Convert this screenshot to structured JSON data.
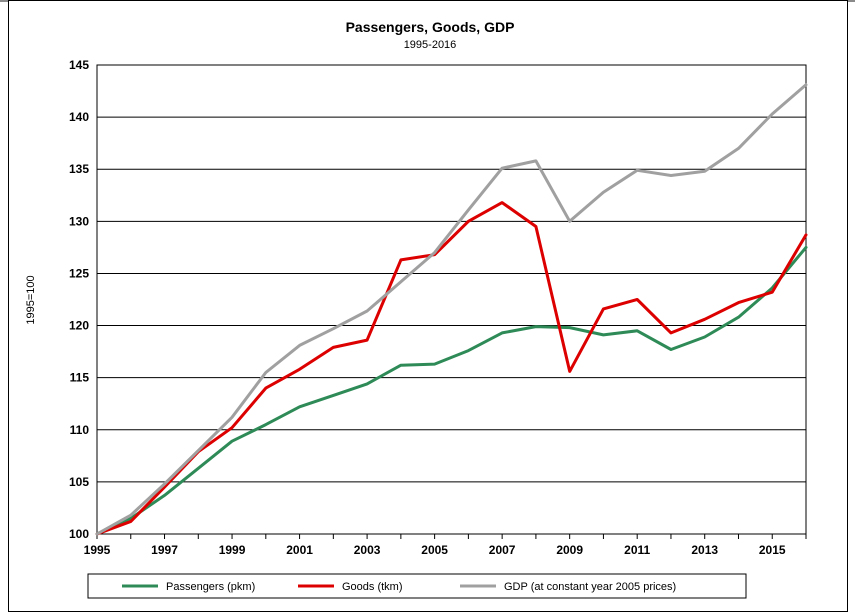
{
  "chart_data": {
    "type": "line",
    "title": "Passengers, Goods, GDP",
    "subtitle": "1995-2016",
    "ylabel": "1995=100",
    "xlabel": "",
    "ylim": [
      100,
      145
    ],
    "yticks": [
      100,
      105,
      110,
      115,
      120,
      125,
      130,
      135,
      140,
      145
    ],
    "xlim": [
      1995,
      2016
    ],
    "xticks": [
      "1995",
      "1997",
      "1999",
      "2001",
      "2003",
      "2005",
      "2007",
      "2009",
      "2011",
      "2013",
      "2015"
    ],
    "grid": "horizontal",
    "legend_position": "bottom",
    "x": [
      1995,
      1996,
      1997,
      1998,
      1999,
      2000,
      2001,
      2002,
      2003,
      2004,
      2005,
      2006,
      2007,
      2008,
      2009,
      2010,
      2011,
      2012,
      2013,
      2014,
      2015,
      2016
    ],
    "series": [
      {
        "name": "Passengers (pkm)",
        "color": "#2e8b57",
        "values": [
          100,
          101.5,
          103.7,
          106.3,
          108.9,
          110.5,
          112.2,
          113.3,
          114.4,
          116.2,
          116.3,
          117.6,
          119.3,
          119.9,
          119.8,
          119.1,
          119.5,
          117.7,
          118.9,
          120.8,
          123.6,
          127.5
        ]
      },
      {
        "name": "Goods (tkm)",
        "color": "#dd0000",
        "values": [
          100,
          101.2,
          104.5,
          107.9,
          110.2,
          114.0,
          115.8,
          117.9,
          118.6,
          126.3,
          126.8,
          130.0,
          131.8,
          129.5,
          115.6,
          121.6,
          122.5,
          119.3,
          120.6,
          122.2,
          123.2,
          128.7
        ]
      },
      {
        "name": "GDP (at constant year 2005 prices)",
        "color": "#a0a0a0",
        "values": [
          100,
          101.8,
          104.8,
          108.0,
          111.2,
          115.5,
          118.1,
          119.7,
          121.4,
          124.2,
          127.0,
          131.1,
          135.1,
          135.8,
          130.0,
          132.8,
          134.9,
          134.4,
          134.8,
          137.0,
          140.3,
          143.1
        ]
      }
    ]
  }
}
